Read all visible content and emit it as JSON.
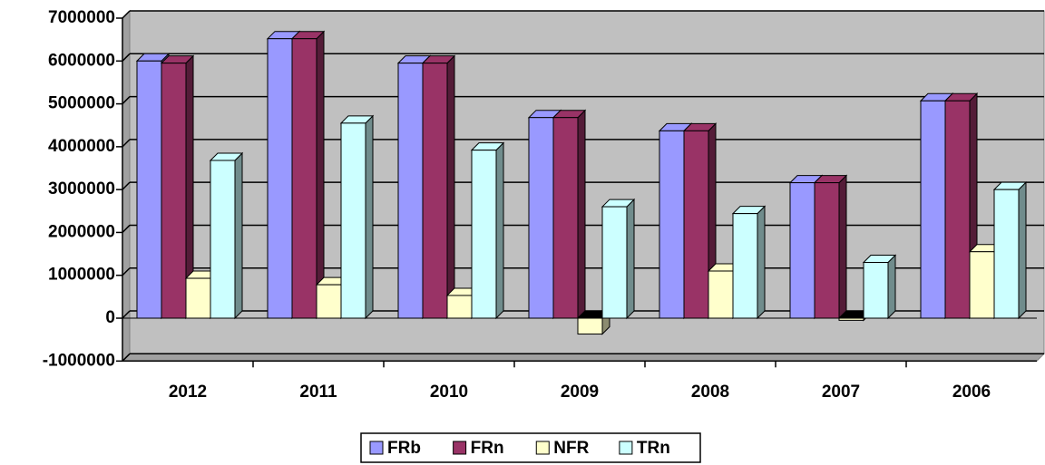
{
  "chart_data": {
    "type": "bar3d",
    "categories": [
      "2012",
      "2011",
      "2010",
      "2009",
      "2008",
      "2007",
      "2006"
    ],
    "series": [
      {
        "name": "FRb",
        "color": "#9999ff",
        "values": [
          6000000,
          6520000,
          5950000,
          4680000,
          4370000,
          3160000,
          5070000
        ]
      },
      {
        "name": "FRn",
        "color": "#993366",
        "values": [
          5950000,
          6520000,
          5950000,
          4680000,
          4370000,
          3160000,
          5070000
        ]
      },
      {
        "name": "NFR",
        "color": "#ffffcc",
        "values": [
          930000,
          780000,
          530000,
          -370000,
          1100000,
          -50000,
          1550000
        ]
      },
      {
        "name": "TRn",
        "color": "#ccffff",
        "values": [
          3680000,
          4550000,
          3920000,
          2600000,
          2440000,
          1300000,
          3000000
        ]
      }
    ],
    "ylim": [
      -1000000,
      7000000
    ],
    "yticks": [
      -1000000,
      0,
      1000000,
      2000000,
      3000000,
      4000000,
      5000000,
      6000000,
      7000000
    ],
    "grid": true,
    "legend": "bottom"
  }
}
